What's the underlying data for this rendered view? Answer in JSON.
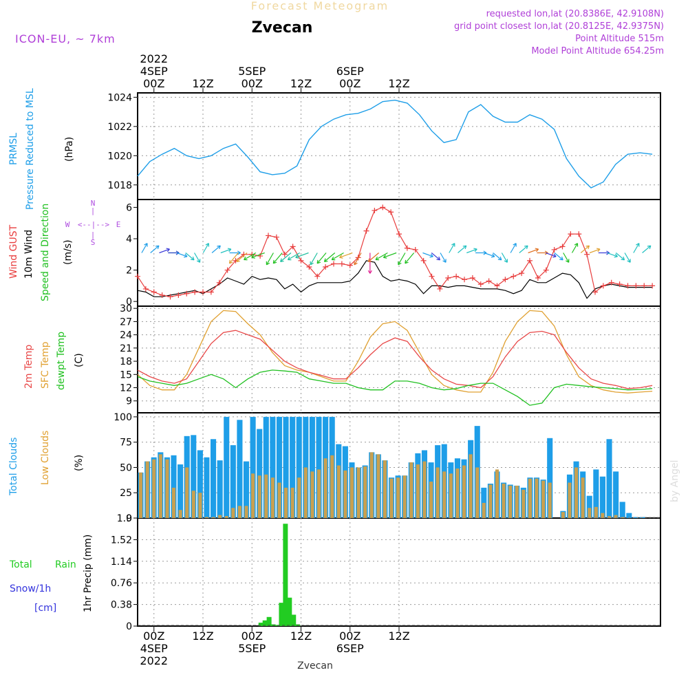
{
  "header": {
    "product": "Forecast Meteogram",
    "station": "Zvecan",
    "model": "ICON-EU, ~ 7km",
    "requested": "requested lon,lat (20.8386E, 42.9108N)",
    "gridpoint": "grid point closest lon,lat (20.8125E, 42.9375N)",
    "altitude": "Point Altitude 515m",
    "model_altitude": "Model Point Altitude 654.25m",
    "footer": "Zvecan",
    "watermark": "by Angel"
  },
  "time_axis": {
    "top_labels": [
      {
        "text": "00Z",
        "day": "4SEP",
        "year": "2022"
      },
      {
        "text": "12Z"
      },
      {
        "text": "00Z",
        "day": "5SEP"
      },
      {
        "text": "12Z"
      },
      {
        "text": "00Z",
        "day": "6SEP"
      },
      {
        "text": "12Z"
      }
    ],
    "bottom_labels": [
      {
        "text": "00Z",
        "day": "4SEP",
        "year": "2022"
      },
      {
        "text": "12Z"
      },
      {
        "text": "00Z",
        "day": "5SEP"
      },
      {
        "text": "12Z"
      },
      {
        "text": "00Z",
        "day": "6SEP"
      },
      {
        "text": "12Z"
      }
    ]
  },
  "colors": {
    "pressure": "#1e9ee8",
    "gust": "#e83c3c",
    "wind": "#000000",
    "temp": "#e84848",
    "sfc": "#e0a030",
    "dewpt": "#20c020",
    "total_clouds": "#1e9ee8",
    "low_clouds": "#c8a050",
    "rain": "#22cc22",
    "snow": "#3333dd",
    "purple": "#b040d8",
    "compass": "#b050e0"
  },
  "panel_labels": {
    "pressure": {
      "name": "PRMSL",
      "desc": "Pressure Reduced to MSL",
      "unit": "(hPa)"
    },
    "wind": {
      "gust": "Wind GUST",
      "wind": "10m Wind",
      "dir": "Speed and Direction",
      "unit": "(m/s)",
      "compass": {
        "n": "N",
        "s": "S",
        "w": "W",
        "e": "E"
      }
    },
    "temp": {
      "t2m": "2m Temp",
      "sfc": "SFC Temp",
      "dew": "dewpt Temp",
      "unit": "(C)"
    },
    "clouds": {
      "total": "Total Clouds",
      "low": "Low Clouds",
      "unit": "(%)"
    },
    "precip": {
      "rain_a": "Total",
      "rain_b": "Rain",
      "snow": "Snow/1h",
      "snow_unit": "[cm]",
      "unit": "1hr Precip (mm)"
    }
  },
  "chart_data": [
    {
      "type": "line",
      "name": "PRMSL",
      "x_hours_from": "2022-09-03T20Z",
      "ylim": [
        1017,
        1024.3
      ],
      "yticks": [
        "1018",
        "1020",
        "1022",
        "1024"
      ],
      "ytick_values": [
        1018,
        1020,
        1022,
        1024
      ],
      "x": [
        0,
        3,
        6,
        9,
        12,
        15,
        18,
        21,
        24,
        27,
        30,
        33,
        36,
        39,
        42,
        45,
        48,
        51,
        54,
        57,
        60,
        63,
        66,
        69,
        72,
        75,
        78,
        81,
        84,
        87,
        90,
        93,
        96,
        99,
        102,
        105,
        108,
        111,
        114,
        117,
        120,
        123,
        126
      ],
      "values": [
        1018.6,
        1019.6,
        1020.1,
        1020.5,
        1020.0,
        1019.8,
        1020.0,
        1020.5,
        1020.8,
        1019.9,
        1018.9,
        1018.7,
        1018.8,
        1019.3,
        1021.1,
        1022.0,
        1022.5,
        1022.8,
        1022.9,
        1023.2,
        1023.7,
        1023.8,
        1023.6,
        1022.8,
        1021.7,
        1020.9,
        1021.1,
        1023.0,
        1023.5,
        1022.7,
        1022.3,
        1022.3,
        1022.8,
        1022.5,
        1021.8,
        1019.8,
        1018.6,
        1017.8,
        1018.2,
        1019.4,
        1020.1,
        1020.2,
        1020.1
      ]
    },
    {
      "type": "line",
      "name": "Wind GUST / 10m Wind",
      "ylim": [
        -0.3,
        6.5
      ],
      "yticks": [
        "0",
        "2",
        "4",
        "6"
      ],
      "ytick_values": [
        0,
        2,
        4,
        6
      ],
      "x": [
        0,
        2,
        4,
        6,
        8,
        10,
        12,
        14,
        16,
        18,
        20,
        22,
        24,
        26,
        28,
        30,
        32,
        34,
        36,
        38,
        40,
        42,
        44,
        46,
        48,
        50,
        52,
        54,
        56,
        58,
        60,
        62,
        64,
        66,
        68,
        70,
        72,
        74,
        76,
        78,
        80,
        82,
        84,
        86,
        88,
        90,
        92,
        94,
        96,
        98,
        100,
        102,
        104,
        106,
        108,
        110,
        112,
        114,
        116,
        118,
        120,
        122,
        124,
        126
      ],
      "gust": [
        1.6,
        0.8,
        0.6,
        0.4,
        0.3,
        0.4,
        0.5,
        0.6,
        0.6,
        0.6,
        1.2,
        2.0,
        2.6,
        3.0,
        3.0,
        2.9,
        4.2,
        4.1,
        3.0,
        3.5,
        2.6,
        2.2,
        1.6,
        2.2,
        2.4,
        2.4,
        2.3,
        2.8,
        4.5,
        5.8,
        6.0,
        5.7,
        4.3,
        3.4,
        3.3,
        2.6,
        1.6,
        0.8,
        1.5,
        1.6,
        1.4,
        1.5,
        1.1,
        1.3,
        1.0,
        1.4,
        1.6,
        1.8,
        2.6,
        1.5,
        2.0,
        3.3,
        3.5,
        4.3,
        4.3,
        3.0,
        0.6,
        1.0,
        1.2,
        1.1,
        1.0,
        1.0,
        1.0,
        1.0
      ],
      "wind": [
        0.7,
        0.6,
        0.3,
        0.3,
        0.4,
        0.5,
        0.6,
        0.7,
        0.5,
        0.8,
        1.1,
        1.5,
        1.3,
        1.1,
        1.6,
        1.4,
        1.5,
        1.4,
        0.8,
        1.1,
        0.6,
        1.0,
        1.2,
        1.2,
        1.2,
        1.2,
        1.3,
        1.8,
        2.6,
        2.5,
        1.6,
        1.3,
        1.4,
        1.3,
        1.1,
        0.5,
        1.0,
        1.0,
        0.9,
        1.0,
        1.0,
        0.9,
        0.8,
        0.8,
        0.8,
        0.7,
        0.5,
        0.7,
        1.4,
        1.2,
        1.2,
        1.5,
        1.8,
        1.7,
        1.2,
        0.2,
        0.8,
        1.0,
        1.1,
        1.0,
        0.9,
        0.9,
        0.9,
        0.9
      ]
    },
    {
      "type": "line",
      "name": "Temperatures",
      "ylim": [
        6.3,
        30.5
      ],
      "yticks": [
        "9",
        "12",
        "15",
        "18",
        "21",
        "24",
        "27",
        "30"
      ],
      "ytick_values": [
        9,
        12,
        15,
        18,
        21,
        24,
        27,
        30
      ],
      "x": [
        0,
        3,
        6,
        9,
        12,
        15,
        18,
        21,
        24,
        27,
        30,
        33,
        36,
        39,
        42,
        45,
        48,
        51,
        54,
        57,
        60,
        63,
        66,
        69,
        72,
        75,
        78,
        81,
        84,
        87,
        90,
        93,
        96,
        99,
        102,
        105,
        108,
        111,
        114,
        117,
        120,
        123,
        126
      ],
      "t2m": [
        16.0,
        14.5,
        13.5,
        13.0,
        14.0,
        18.0,
        22.0,
        24.5,
        25.0,
        24.0,
        23.0,
        20.5,
        18.0,
        16.5,
        15.5,
        14.8,
        14.0,
        14.0,
        16.5,
        19.5,
        22.0,
        23.3,
        22.5,
        19.0,
        16.0,
        14.0,
        12.8,
        12.5,
        12.0,
        14.5,
        19.0,
        22.5,
        24.5,
        24.8,
        24.0,
        20.0,
        16.5,
        14.0,
        13.0,
        12.5,
        11.8,
        12.0,
        12.5
      ],
      "sfc": [
        15.0,
        12.5,
        11.5,
        11.5,
        15.0,
        21.0,
        27.0,
        29.5,
        29.3,
        26.5,
        24.0,
        20.0,
        17.0,
        16.0,
        15.5,
        14.5,
        13.5,
        13.5,
        18.0,
        23.5,
        26.5,
        27.0,
        25.0,
        20.0,
        15.0,
        12.5,
        11.5,
        11.0,
        11.0,
        15.5,
        22.5,
        27.0,
        29.5,
        29.3,
        26.0,
        19.5,
        14.5,
        12.5,
        11.5,
        11.0,
        10.8,
        11.0,
        11.2
      ],
      "dewpt": [
        14.5,
        13.5,
        13.0,
        12.5,
        13.0,
        14.0,
        15.0,
        14.0,
        12.0,
        14.0,
        15.5,
        16.0,
        15.8,
        15.5,
        14.0,
        13.5,
        13.0,
        13.0,
        12.0,
        11.5,
        11.5,
        13.5,
        13.5,
        13.0,
        12.0,
        11.5,
        11.8,
        12.5,
        13.0,
        13.0,
        11.5,
        10.0,
        8.0,
        8.5,
        12.0,
        12.8,
        12.5,
        12.2,
        12.0,
        11.8,
        11.5,
        11.6,
        11.8
      ]
    },
    {
      "type": "bar",
      "name": "Clouds",
      "ylim": [
        0,
        104
      ],
      "yticks": [
        "0",
        "25",
        "50",
        "75",
        "100"
      ],
      "ytick_values": [
        0,
        25,
        50,
        75,
        100
      ],
      "total": [
        45,
        56,
        60,
        65,
        60,
        62,
        53,
        81,
        82,
        67,
        60,
        78,
        57,
        100,
        72,
        97,
        56,
        100,
        88,
        100,
        100,
        100,
        100,
        100,
        100,
        100,
        100,
        100,
        100,
        100,
        73,
        71,
        55,
        50,
        52,
        65,
        63,
        57,
        40,
        42,
        42,
        55,
        64,
        67,
        55,
        72,
        73,
        55,
        59,
        58,
        77,
        91,
        30,
        34,
        46,
        35,
        33,
        32,
        30,
        40,
        40,
        38,
        79,
        0,
        7,
        43,
        56,
        46,
        22,
        48,
        41,
        78,
        46,
        16,
        5,
        1,
        1,
        0
      ],
      "low": [
        45,
        56,
        58,
        63,
        58,
        30,
        8,
        50,
        27,
        25,
        1,
        1,
        3,
        2,
        10,
        12,
        12,
        44,
        42,
        43,
        40,
        35,
        30,
        30,
        40,
        50,
        46,
        48,
        59,
        62,
        52,
        47,
        50,
        50,
        51,
        65,
        63,
        57,
        39,
        40,
        42,
        55,
        53,
        56,
        36,
        50,
        46,
        44,
        49,
        52,
        63,
        50,
        15,
        33,
        48,
        34,
        32,
        32,
        28,
        39,
        39,
        37,
        35,
        0,
        6,
        35,
        50,
        40,
        10,
        11,
        5,
        2,
        3,
        1,
        0,
        0,
        0,
        0
      ]
    },
    {
      "type": "bar",
      "name": "1hr Precip",
      "ylim": [
        0,
        1.9
      ],
      "yticks": [
        "0",
        "0.38",
        "0.76",
        "1.14",
        "1.52",
        "1.9"
      ],
      "ytick_values": [
        0,
        0.38,
        0.76,
        1.14,
        1.52,
        1.9
      ],
      "hours": [
        28,
        29,
        30,
        31,
        32,
        33,
        34,
        35,
        36,
        37,
        38
      ],
      "values": [
        0.06,
        0.1,
        0.16,
        0.03,
        0.02,
        0.41,
        1.8,
        0.5,
        0.2,
        0.03,
        0.0
      ]
    }
  ]
}
